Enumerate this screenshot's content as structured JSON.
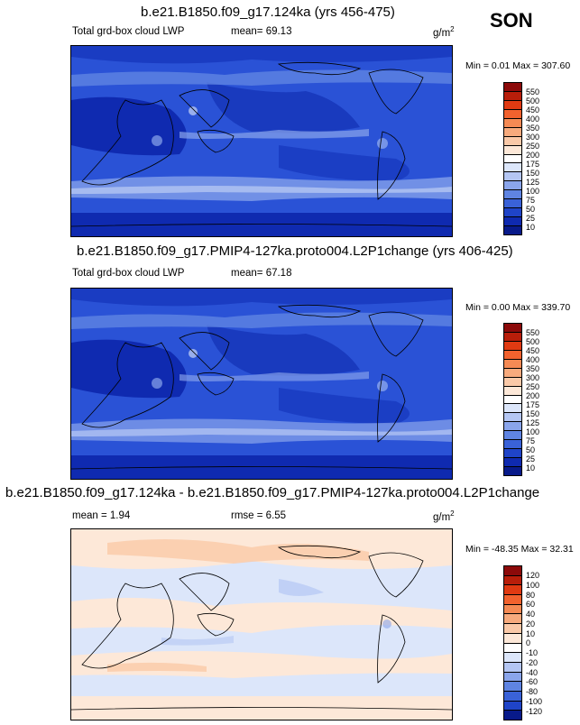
{
  "season": "SON",
  "units": "g/m",
  "units_sup": "2",
  "panels": [
    {
      "title": "b.e21.B1850.f09_g17.124ka (yrs 456-475)",
      "variable": "Total grd-box cloud LWP",
      "mean_label": "mean=",
      "mean_value": "69.13",
      "min_label": "Min =",
      "min_value": "0.01",
      "max_label": "Max =",
      "max_value": "307.60",
      "colorbar_levels": [
        "550",
        "500",
        "450",
        "400",
        "350",
        "300",
        "250",
        "200",
        "175",
        "150",
        "125",
        "100",
        "75",
        "50",
        "25",
        "10"
      ],
      "colorbar_colors": [
        "#8c0a0a",
        "#b81e0a",
        "#e03a12",
        "#f2622e",
        "#f58a54",
        "#f7aa7d",
        "#fac9a8",
        "#fde8d8",
        "#ffffff",
        "#dce6fa",
        "#b4c6f3",
        "#8aa5eb",
        "#5f84e2",
        "#3a62d8",
        "#1f44c8",
        "#0f2ab0",
        "#081a8a"
      ]
    },
    {
      "title": "b.e21.B1850.f09_g17.PMIP4-127ka.proto004.L2P1change (yrs 406-425)",
      "variable": "Total grd-box cloud LWP",
      "mean_label": "mean=",
      "mean_value": "67.18",
      "min_label": "Min =",
      "min_value": "0.00",
      "max_label": "Max =",
      "max_value": "339.70",
      "colorbar_levels": [
        "550",
        "500",
        "450",
        "400",
        "350",
        "300",
        "250",
        "200",
        "175",
        "150",
        "125",
        "100",
        "75",
        "50",
        "25",
        "10"
      ],
      "colorbar_colors": [
        "#8c0a0a",
        "#b81e0a",
        "#e03a12",
        "#f2622e",
        "#f58a54",
        "#f7aa7d",
        "#fac9a8",
        "#fde8d8",
        "#ffffff",
        "#dce6fa",
        "#b4c6f3",
        "#8aa5eb",
        "#5f84e2",
        "#3a62d8",
        "#1f44c8",
        "#0f2ab0",
        "#081a8a"
      ]
    },
    {
      "title": "b.e21.B1850.f09_g17.124ka - b.e21.B1850.f09_g17.PMIP4-127ka.proto004.L2P1change",
      "mean_label": "mean =",
      "mean_value": "1.94",
      "rmse_label": "rmse =",
      "rmse_value": "6.55",
      "min_label": "Min =",
      "min_value": "-48.35",
      "max_label": "Max =",
      "max_value": "32.31",
      "colorbar_levels": [
        "120",
        "100",
        "80",
        "60",
        "40",
        "20",
        "10",
        "0",
        "-10",
        "-20",
        "-40",
        "-60",
        "-80",
        "-100",
        "-120"
      ],
      "colorbar_colors": [
        "#8c0a0a",
        "#b81e0a",
        "#e03a12",
        "#f2622e",
        "#f58a54",
        "#f7aa7d",
        "#fac9a8",
        "#fde8d8",
        "#ffffff",
        "#dce6fa",
        "#b4c6f3",
        "#8aa5eb",
        "#5f84e2",
        "#3a62d8",
        "#1f44c8",
        "#081a8a"
      ]
    }
  ]
}
